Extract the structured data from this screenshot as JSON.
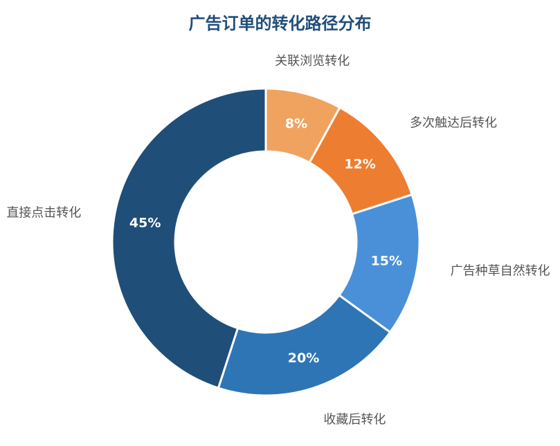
{
  "chart_data": {
    "type": "pie",
    "title": "广告订单的转化路径分布",
    "categories": [
      "关联浏览转化",
      "多次触达后转化",
      "广告种草自然转化",
      "收藏后转化",
      "直接点击转化"
    ],
    "values": [
      8,
      12,
      15,
      20,
      45
    ],
    "value_labels": [
      "8%",
      "12%",
      "15%",
      "20%",
      "45%"
    ],
    "colors": [
      "#f0a35e",
      "#ed7d31",
      "#4a90d9",
      "#2e75b6",
      "#1f4e79"
    ],
    "donut": true,
    "legend": "none"
  }
}
